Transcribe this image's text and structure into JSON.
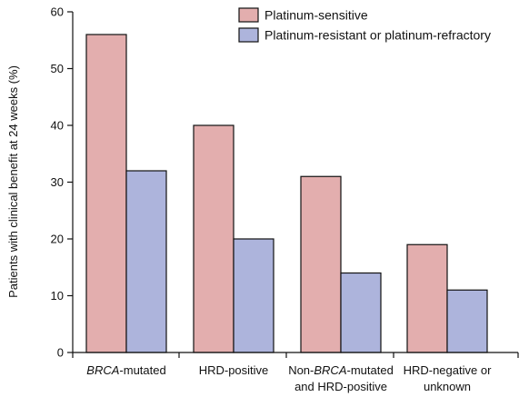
{
  "chart_data": {
    "type": "bar",
    "title": "",
    "xlabel": "",
    "ylabel": "Patients with clinical benefit at 24 weeks (%)",
    "ylim": [
      0,
      60
    ],
    "yticks": [
      0,
      10,
      20,
      30,
      40,
      50,
      60
    ],
    "categories": [
      [
        "",
        "BRCA",
        "-mutated"
      ],
      [
        "HRD-positive"
      ],
      [
        "Non-",
        "BRCA",
        "-mutated",
        "and HRD-positive"
      ],
      [
        "HRD-negative or",
        "unknown"
      ]
    ],
    "categories_text": [
      "BRCA-mutated",
      "HRD-positive",
      "Non-BRCA-mutated and HRD-positive",
      "HRD-negative or unknown"
    ],
    "series": [
      {
        "name": "Platinum-sensitive",
        "color": "#e3aeae",
        "values": [
          56,
          40,
          31,
          19
        ]
      },
      {
        "name": "Platinum-resistant or platinum-refractory",
        "color": "#adb4dc",
        "values": [
          32,
          20,
          14,
          11
        ]
      }
    ],
    "legend_position": "top-right",
    "grid": false
  }
}
